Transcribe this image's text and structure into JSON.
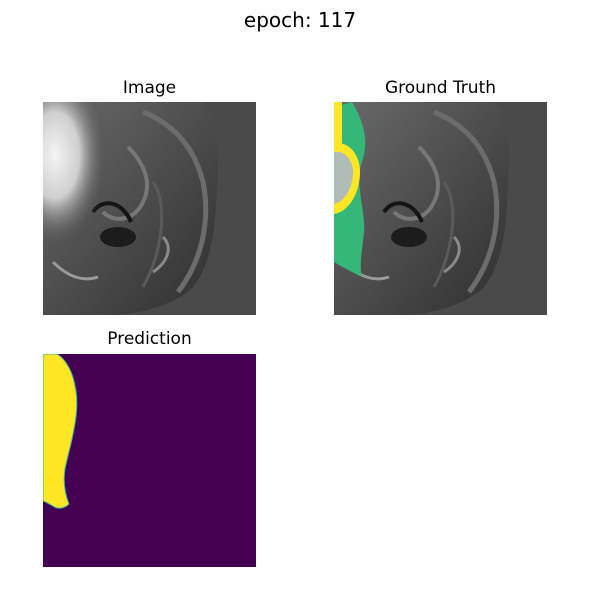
{
  "figure": {
    "title": "epoch: 117"
  },
  "panels": {
    "image": {
      "title": "Image"
    },
    "ground_truth": {
      "title": "Ground Truth"
    },
    "prediction": {
      "title": "Prediction"
    }
  },
  "colors": {
    "background": "#4a4a4a",
    "mask_purple": "#440154",
    "mask_yellow": "#fde725",
    "mask_green": "#35b779",
    "mask_teal": "#3fb0a1"
  }
}
